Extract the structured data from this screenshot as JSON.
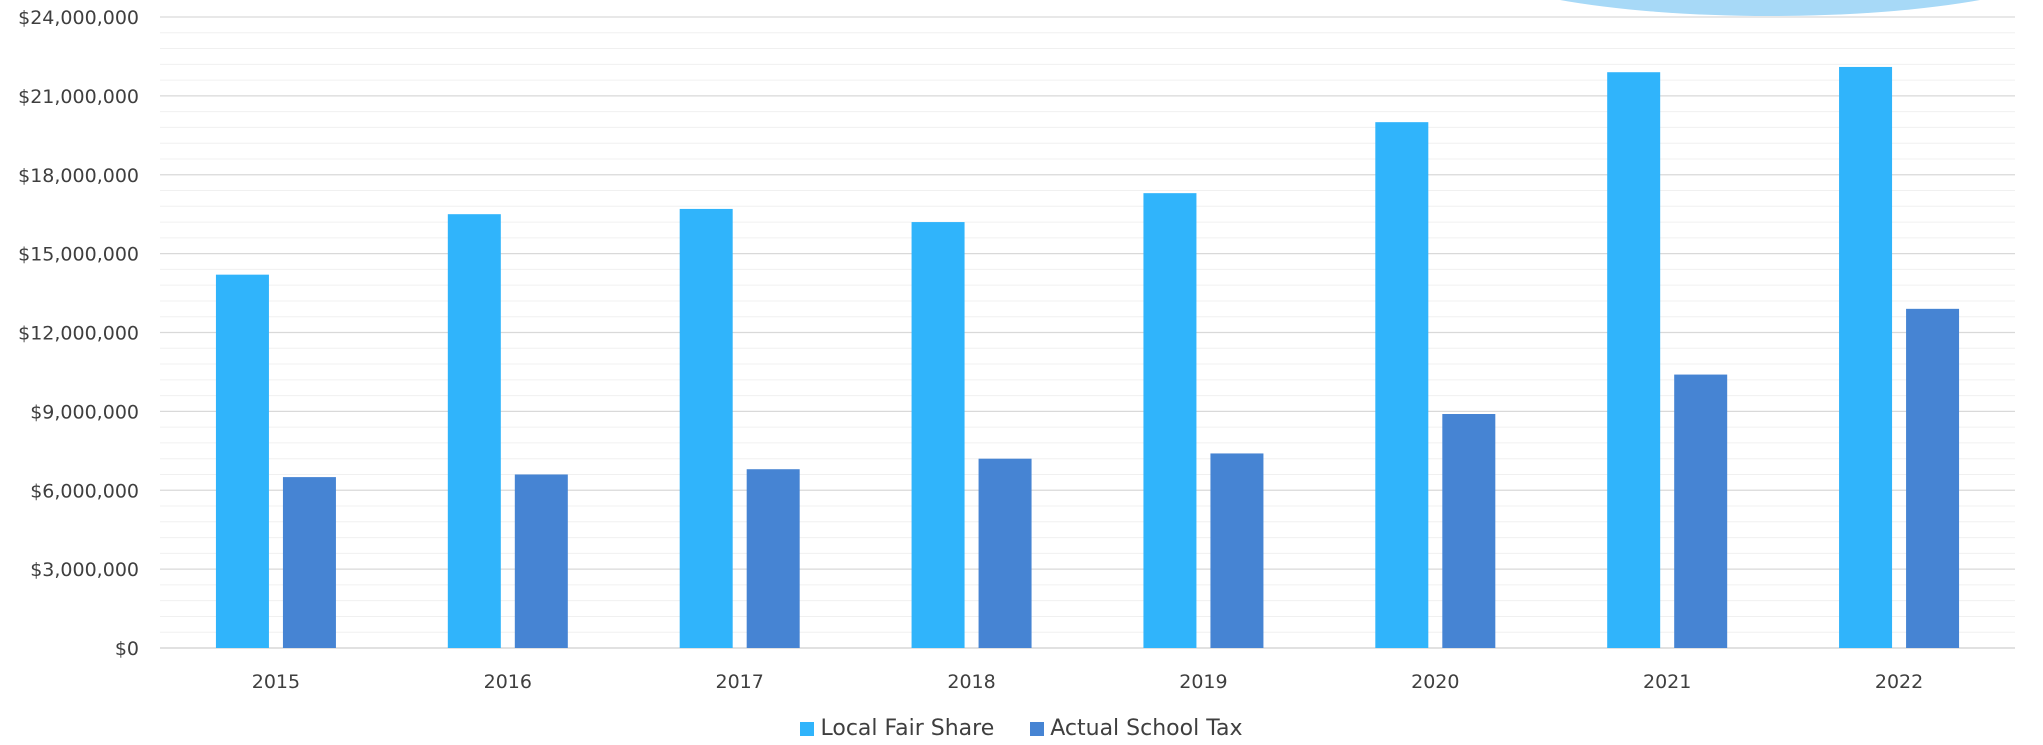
{
  "chart_data": {
    "type": "bar",
    "title": "",
    "xlabel": "",
    "ylabel": "",
    "categories": [
      "2015",
      "2016",
      "2017",
      "2018",
      "2019",
      "2020",
      "2021",
      "2022"
    ],
    "series": [
      {
        "name": "Local Fair Share",
        "color": "#30b4fb",
        "values": [
          14200000,
          16500000,
          16700000,
          16200000,
          17300000,
          20000000,
          21900000,
          22100000
        ]
      },
      {
        "name": "Actual School Tax",
        "color": "#4684d3",
        "values": [
          6500000,
          6600000,
          6800000,
          7200000,
          7400000,
          8900000,
          10400000,
          12900000
        ]
      }
    ],
    "ylim": [
      0,
      24000000
    ],
    "yticks": [
      "$0",
      "$3,000,000",
      "$6,000,000",
      "$9,000,000",
      "$12,000,000",
      "$15,000,000",
      "$18,000,000",
      "$21,000,000",
      "$24,000,000"
    ],
    "grid": true,
    "legend_position": "bottom"
  }
}
